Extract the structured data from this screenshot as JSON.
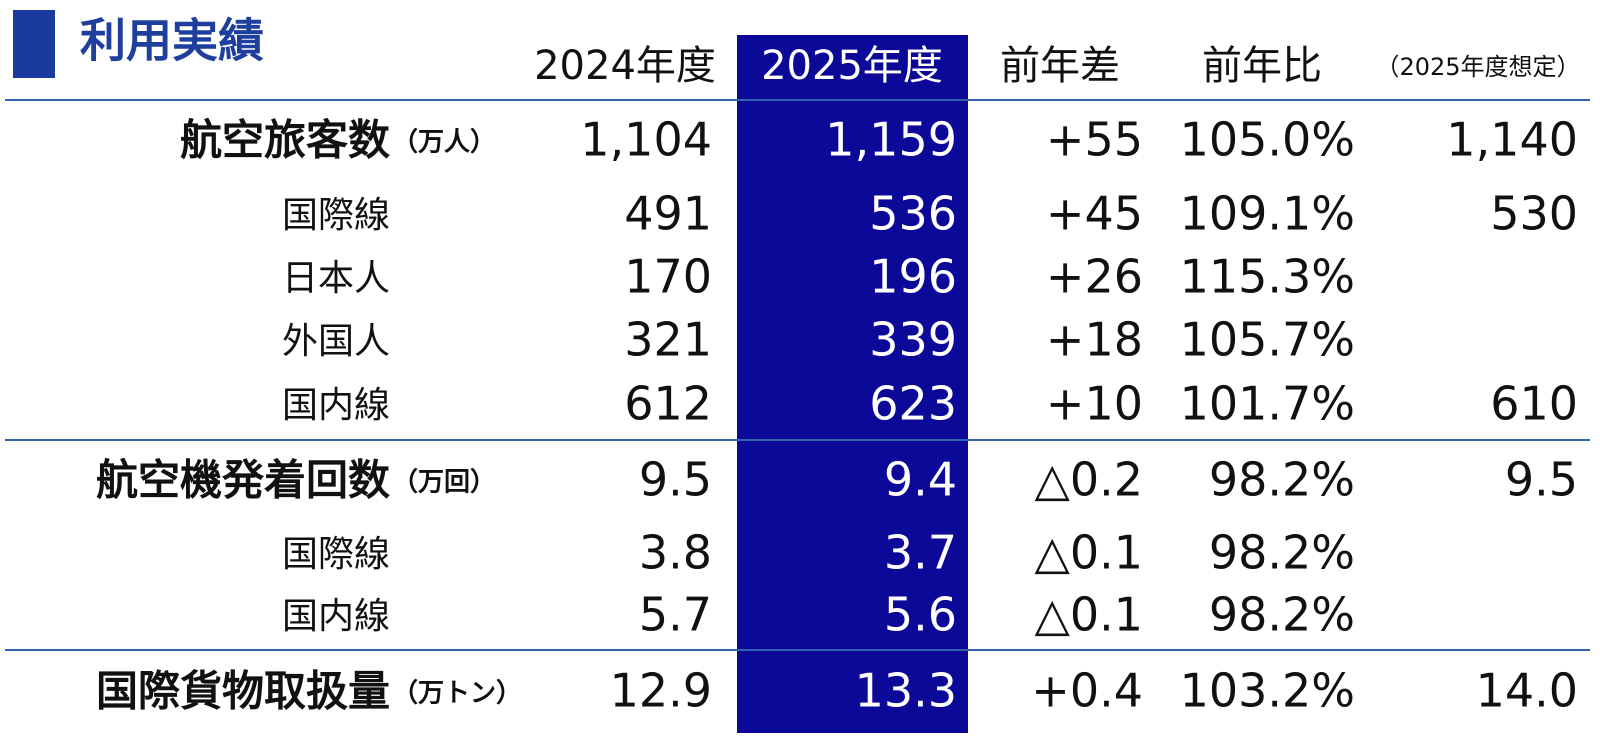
{
  "header": {
    "title": "利用実績"
  },
  "table": {
    "columns": [
      "2024年度",
      "2025年度",
      "前年差",
      "前年比",
      "（2025年度想定）"
    ],
    "sections": [
      {
        "label": "航空旅客数",
        "unit": "（万人）",
        "cells": [
          "1,104",
          "1,159",
          "+55",
          "105.0%",
          "1,140"
        ],
        "rows": [
          {
            "label": "国際線",
            "cells": [
              "491",
              "536",
              "+45",
              "109.1%",
              "530"
            ]
          },
          {
            "label": "日本人",
            "cells": [
              "170",
              "196",
              "+26",
              "115.3%",
              null
            ]
          },
          {
            "label": "外国人",
            "cells": [
              "321",
              "339",
              "+18",
              "105.7%",
              null
            ]
          },
          {
            "label": "国内線",
            "cells": [
              "612",
              "623",
              "+10",
              "101.7%",
              "610"
            ]
          }
        ]
      },
      {
        "label": "航空機発着回数",
        "unit": "（万回）",
        "cells": [
          "9.5",
          "9.4",
          "△0.2",
          "98.2%",
          "9.5"
        ],
        "rows": [
          {
            "label": "国際線",
            "cells": [
              "3.8",
              "3.7",
              "△0.1",
              "98.2%",
              null
            ]
          },
          {
            "label": "国内線",
            "cells": [
              "5.7",
              "5.6",
              "△0.1",
              "98.2%",
              null
            ]
          }
        ]
      },
      {
        "label": "国際貨物取扱量",
        "unit": "（万トン）",
        "cells": [
          "12.9",
          "13.3",
          "+0.4",
          "103.2%",
          "14.0"
        ],
        "rows": []
      }
    ]
  }
}
